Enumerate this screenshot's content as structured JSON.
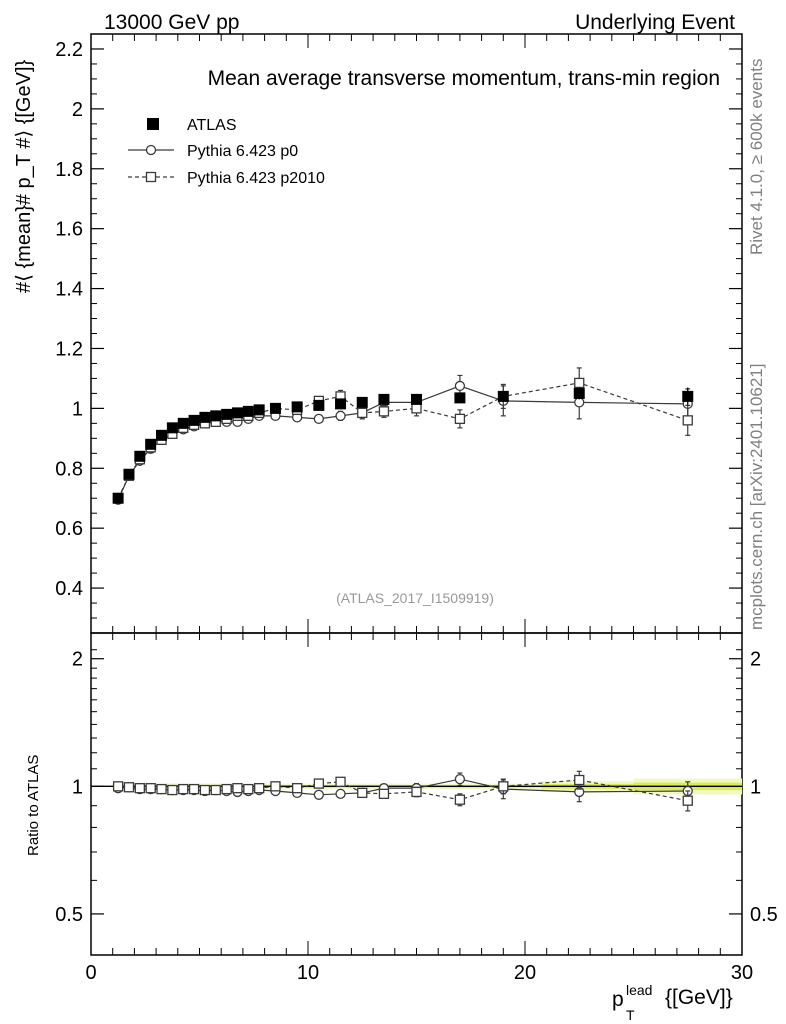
{
  "header": {
    "left": "13000 GeV pp",
    "right": "Underlying Event"
  },
  "side_labels": {
    "rivet": "Rivet 4.1.0, ≥ 600k events",
    "mcplots": "mcplots.cern.ch [arXiv:2401.10621]"
  },
  "chart_data": {
    "type": "scatter",
    "title": "Mean average transverse momentum, trans-min region",
    "watermark": "(ATLAS_2017_I1509919)",
    "xlabel_main": "p",
    "xlabel_sup": "lead",
    "xlabel_sub": "T",
    "xlabel_unit": "{[GeV]}",
    "ylabel": "#⟨ {mean}# p_T #⟩ {[GeV]}",
    "ratio_ylabel": "Ratio to ATLAS",
    "xlim": [
      0,
      30
    ],
    "ylim": [
      0.25,
      2.25
    ],
    "ratio_ylim": [
      0.4,
      2.3
    ],
    "x_ticks": [
      "0",
      "10",
      "20",
      "30"
    ],
    "y_ticks": [
      "0.4",
      "0.6",
      "0.8",
      "1",
      "1.2",
      "1.4",
      "1.6",
      "1.8",
      "2",
      "2.2"
    ],
    "ratio_ticks": [
      "0.5",
      "1",
      "2"
    ],
    "legend": [
      {
        "name": "ATLAS",
        "marker": "filled-square",
        "line": "none"
      },
      {
        "name": "Pythia 6.423 p0",
        "marker": "open-circle",
        "line": "solid"
      },
      {
        "name": "Pythia 6.423 p2010",
        "marker": "open-square",
        "line": "dashed"
      }
    ],
    "x": [
      1.25,
      1.75,
      2.25,
      2.75,
      3.25,
      3.75,
      4.25,
      4.75,
      5.25,
      5.75,
      6.25,
      6.75,
      7.25,
      7.75,
      8.5,
      9.5,
      10.5,
      11.5,
      12.5,
      13.5,
      15.0,
      17.0,
      19.0,
      22.5,
      27.5
    ],
    "series": [
      {
        "name": "ATLAS",
        "values": [
          0.7,
          0.78,
          0.84,
          0.88,
          0.91,
          0.935,
          0.95,
          0.96,
          0.97,
          0.975,
          0.98,
          0.985,
          0.99,
          0.995,
          1.0,
          1.005,
          1.01,
          1.015,
          1.02,
          1.03,
          1.03,
          1.035,
          1.04,
          1.05,
          1.04
        ],
        "errors": [
          0.01,
          0.01,
          0.01,
          0.01,
          0.01,
          0.01,
          0.01,
          0.01,
          0.01,
          0.01,
          0.01,
          0.01,
          0.01,
          0.01,
          0.01,
          0.01,
          0.01,
          0.01,
          0.01,
          0.01,
          0.01,
          0.01,
          0.01,
          0.02,
          0.03
        ]
      },
      {
        "name": "Pythia 6.423 p0",
        "values": [
          0.695,
          0.775,
          0.825,
          0.865,
          0.895,
          0.915,
          0.93,
          0.94,
          0.95,
          0.955,
          0.955,
          0.955,
          0.965,
          0.975,
          0.975,
          0.97,
          0.965,
          0.975,
          0.985,
          1.02,
          1.02,
          1.075,
          1.025,
          1.02,
          1.015
        ],
        "errors": [
          0.005,
          0.005,
          0.005,
          0.005,
          0.005,
          0.005,
          0.005,
          0.005,
          0.005,
          0.005,
          0.005,
          0.005,
          0.005,
          0.005,
          0.01,
          0.01,
          0.01,
          0.015,
          0.02,
          0.02,
          0.025,
          0.035,
          0.05,
          0.055,
          0.05
        ]
      },
      {
        "name": "Pythia 6.423 p2010",
        "values": [
          0.7,
          0.775,
          0.83,
          0.87,
          0.895,
          0.915,
          0.935,
          0.945,
          0.95,
          0.955,
          0.965,
          0.975,
          0.975,
          0.985,
          1.0,
          0.995,
          1.025,
          1.04,
          0.985,
          0.99,
          1.0,
          0.965,
          1.04,
          1.085,
          0.96
        ],
        "errors": [
          0.005,
          0.005,
          0.005,
          0.005,
          0.005,
          0.005,
          0.005,
          0.005,
          0.005,
          0.005,
          0.005,
          0.005,
          0.005,
          0.005,
          0.01,
          0.01,
          0.01,
          0.02,
          0.02,
          0.02,
          0.025,
          0.03,
          0.04,
          0.05,
          0.05
        ]
      }
    ],
    "ratio_series": [
      {
        "name": "Pythia 6.423 p0",
        "values": [
          0.99,
          0.995,
          0.985,
          0.985,
          0.985,
          0.98,
          0.98,
          0.98,
          0.975,
          0.98,
          0.975,
          0.97,
          0.975,
          0.98,
          0.975,
          0.965,
          0.955,
          0.96,
          0.965,
          0.99,
          0.99,
          1.04,
          0.985,
          0.97,
          0.975
        ],
        "errors": [
          0.005,
          0.005,
          0.005,
          0.005,
          0.005,
          0.005,
          0.005,
          0.005,
          0.005,
          0.005,
          0.005,
          0.005,
          0.005,
          0.005,
          0.01,
          0.01,
          0.01,
          0.015,
          0.02,
          0.02,
          0.025,
          0.035,
          0.05,
          0.05,
          0.05
        ]
      },
      {
        "name": "Pythia 6.423 p2010",
        "values": [
          1.0,
          0.995,
          0.99,
          0.99,
          0.985,
          0.98,
          0.985,
          0.985,
          0.98,
          0.98,
          0.985,
          0.99,
          0.985,
          0.99,
          1.0,
          0.99,
          1.015,
          1.025,
          0.965,
          0.96,
          0.97,
          0.93,
          1.0,
          1.035,
          0.925
        ],
        "errors": [
          0.005,
          0.005,
          0.005,
          0.005,
          0.005,
          0.005,
          0.005,
          0.005,
          0.005,
          0.005,
          0.005,
          0.005,
          0.005,
          0.005,
          0.01,
          0.01,
          0.01,
          0.02,
          0.02,
          0.02,
          0.025,
          0.03,
          0.04,
          0.05,
          0.05
        ]
      }
    ],
    "colors": {
      "data": "#000000",
      "mc": "#3a3a3a",
      "band_inner": "#d8ee4a",
      "band_outer": "#f2f8c2",
      "watermark": "#999999",
      "side": "#808080"
    }
  }
}
